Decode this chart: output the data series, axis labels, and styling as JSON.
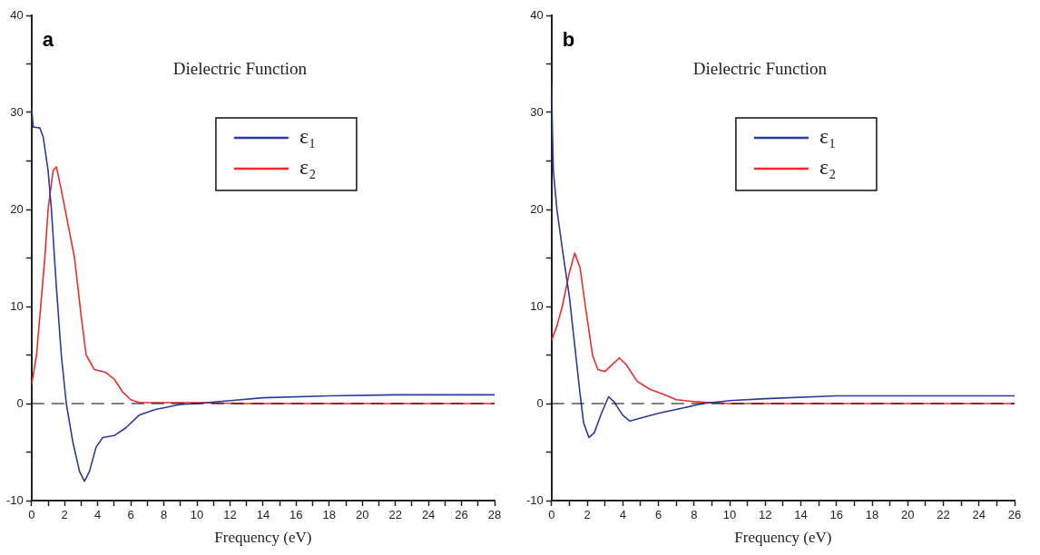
{
  "chart_data": [
    {
      "type": "line",
      "title": "Dielectric Function",
      "xlabel": "Frequency (eV)",
      "annotations": [
        "a"
      ],
      "legend": "top",
      "marker": "none",
      "line_style": "solid",
      "grid": false,
      "xlim": [
        0,
        28
      ],
      "xticks": [
        0,
        {
          "value": 1,
          "label": null
        },
        2,
        {
          "value": 3,
          "label": null
        },
        4,
        {
          "value": 5,
          "label": null
        },
        6,
        {
          "value": 7,
          "label": null
        },
        8,
        {
          "value": 9,
          "label": null
        },
        10,
        {
          "value": 11,
          "label": null
        },
        12,
        {
          "value": 13,
          "label": null
        },
        14,
        {
          "value": 15,
          "label": null
        },
        16,
        {
          "value": 17,
          "label": null
        },
        18,
        {
          "value": 19,
          "label": null
        },
        20,
        {
          "value": 21,
          "label": null
        },
        22,
        {
          "value": 23,
          "label": null
        },
        24,
        {
          "value": 25,
          "label": null
        },
        26,
        {
          "value": 27,
          "label": null
        },
        28
      ],
      "ylim": [
        -10,
        40
      ],
      "yticks": [
        -10,
        {
          "value": -5,
          "label": null
        },
        0,
        {
          "value": 5,
          "label": null
        },
        10,
        {
          "value": 15,
          "label": null
        },
        20,
        {
          "value": 25,
          "label": null
        },
        30,
        {
          "value": 35,
          "label": null
        },
        40
      ],
      "ref_lines": [
        {
          "axis": "y",
          "value": 0,
          "color": "#000000",
          "line_style": "dashed"
        }
      ],
      "series": [
        {
          "name": "ε₁",
          "color": "#2b3a9c",
          "x": [
            0,
            0.1,
            0.5,
            0.7,
            1.0,
            1.2,
            1.5,
            1.8,
            2.1,
            2.5,
            2.9,
            3.2,
            3.5,
            3.9,
            4.3,
            5.0,
            5.7,
            6.5,
            7.5,
            9,
            10,
            12,
            14,
            18,
            22,
            28
          ],
          "values": [
            30.5,
            28.5,
            28.4,
            27.5,
            24,
            20,
            12,
            5,
            0,
            -4,
            -7,
            -8,
            -7,
            -4.5,
            -3.5,
            -3.3,
            -2.5,
            -1.2,
            -0.6,
            -0.1,
            0,
            0.3,
            0.6,
            0.8,
            0.9,
            0.9
          ]
        },
        {
          "name": "ε₂",
          "color": "#ee2a2a",
          "x": [
            0,
            0.3,
            0.5,
            0.8,
            1.0,
            1.3,
            1.5,
            1.8,
            2.2,
            2.6,
            3.0,
            3.3,
            3.8,
            4.5,
            5.0,
            5.5,
            6,
            6.5,
            10,
            13,
            28
          ],
          "values": [
            1.9,
            5,
            9,
            15,
            20,
            24,
            24.4,
            22,
            18.5,
            15,
            9,
            5,
            3.5,
            3.2,
            2.5,
            1.2,
            0.4,
            0.1,
            0.1,
            0,
            0
          ]
        }
      ]
    },
    {
      "type": "line",
      "title": "Dielectric Function",
      "xlabel": "Frequency (eV)",
      "annotations": [
        "b"
      ],
      "legend": "top",
      "marker": "none",
      "line_style": "solid",
      "grid": false,
      "xlim": [
        0,
        26
      ],
      "xticks": [
        0,
        {
          "value": 1,
          "label": null
        },
        2,
        {
          "value": 3,
          "label": null
        },
        4,
        {
          "value": 5,
          "label": null
        },
        6,
        {
          "value": 7,
          "label": null
        },
        8,
        {
          "value": 9,
          "label": null
        },
        10,
        {
          "value": 11,
          "label": null
        },
        12,
        {
          "value": 13,
          "label": null
        },
        14,
        {
          "value": 15,
          "label": null
        },
        16,
        {
          "value": 17,
          "label": null
        },
        18,
        {
          "value": 19,
          "label": null
        },
        20,
        {
          "value": 21,
          "label": null
        },
        22,
        {
          "value": 23,
          "label": null
        },
        24,
        {
          "value": 25,
          "label": null
        },
        26
      ],
      "ylim": [
        -10,
        40
      ],
      "yticks": [
        -10,
        {
          "value": -5,
          "label": null
        },
        0,
        {
          "value": 5,
          "label": null
        },
        10,
        {
          "value": 15,
          "label": null
        },
        20,
        {
          "value": 25,
          "label": null
        },
        30,
        {
          "value": 35,
          "label": null
        },
        40
      ],
      "ref_lines": [
        {
          "axis": "y",
          "value": 0,
          "color": "#000000",
          "line_style": "dashed"
        }
      ],
      "series": [
        {
          "name": "ε₁",
          "color": "#2b3a9c",
          "x": [
            0,
            0.05,
            0.1,
            0.3,
            0.6,
            1.0,
            1.3,
            1.6,
            1.8,
            2.1,
            2.4,
            2.8,
            3.2,
            3.5,
            4.0,
            4.4,
            5,
            6,
            7,
            8.5,
            10,
            12,
            16,
            26
          ],
          "values": [
            33,
            28,
            24,
            20,
            16,
            11,
            6,
            1,
            -2,
            -3.5,
            -3,
            -1,
            0.7,
            0.2,
            -1.2,
            -1.8,
            -1.5,
            -1.0,
            -0.6,
            0,
            0.3,
            0.5,
            0.8,
            0.8
          ]
        },
        {
          "name": "ε₂",
          "color": "#ee2a2a",
          "x": [
            0,
            0.3,
            0.6,
            1.0,
            1.3,
            1.6,
            1.9,
            2.3,
            2.6,
            3.0,
            3.4,
            3.8,
            4.2,
            4.8,
            5.5,
            6.5,
            7,
            8,
            9,
            10,
            26
          ],
          "values": [
            6.5,
            8,
            10,
            13.5,
            15.5,
            14,
            10,
            5,
            3.5,
            3.3,
            4,
            4.7,
            4,
            2.3,
            1.5,
            0.8,
            0.4,
            0.2,
            0.1,
            0,
            0
          ]
        }
      ]
    }
  ]
}
